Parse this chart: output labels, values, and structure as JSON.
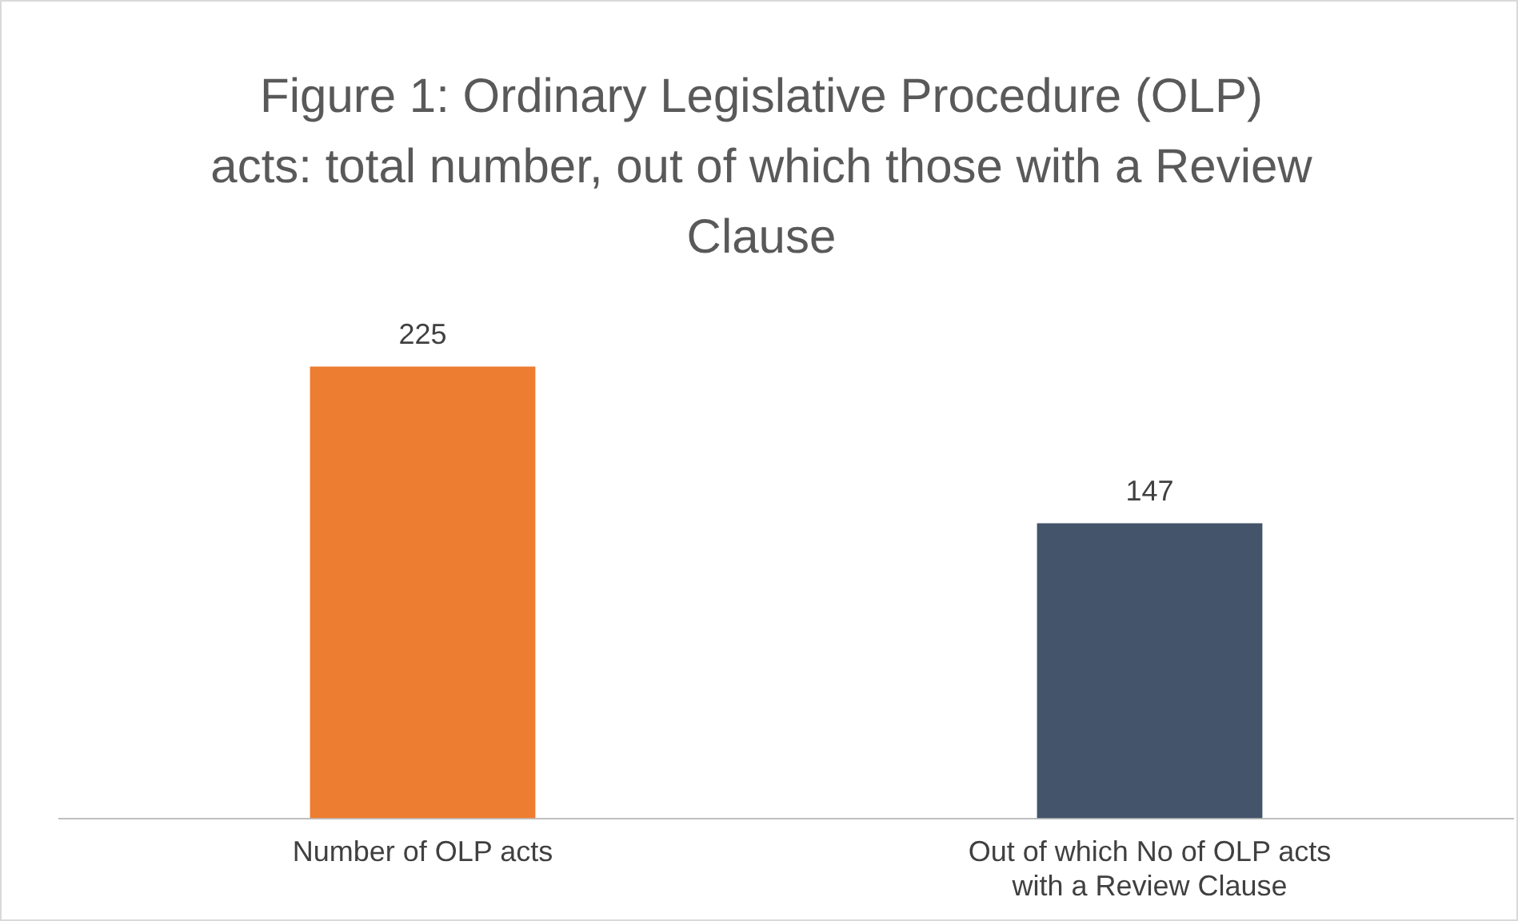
{
  "chart_data": {
    "type": "bar",
    "title": "Figure 1: Ordinary Legislative Procedure (OLP) acts: total number, out of which those with a Review Clause",
    "categories": [
      "Number of OLP acts",
      "Out of which No of OLP acts with a Review Clause"
    ],
    "values": [
      225,
      147
    ],
    "colors": [
      "#ed7d31",
      "#44546a"
    ],
    "data_labels": true,
    "grid": false,
    "legend": false,
    "tick_labels": "x"
  }
}
